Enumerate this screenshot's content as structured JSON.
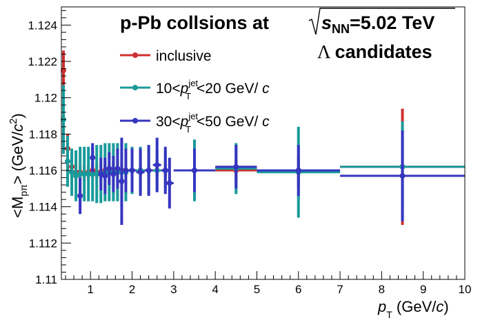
{
  "chart_data": {
    "type": "scatter",
    "title_line1": "p-Pb collsions at",
    "title_energy_sym": "s",
    "title_energy_sub": "NN",
    "title_energy_val": "=5.02 TeV",
    "subtitle_sym": "Λ",
    "subtitle": "candidates",
    "xlabel": {
      "main": "p",
      "sub": "T",
      "unit_open": " (GeV/",
      "unit_c": "c",
      "unit_close": ")"
    },
    "ylabel": {
      "pre": "<M",
      "sub": "pπ",
      "post": "> (GeV/",
      "c": "c",
      "sup": "2",
      "close": ")"
    },
    "xlim": [
      0.3,
      10
    ],
    "ylim": [
      1.11,
      1.125
    ],
    "x_ticks": [
      "1",
      "2",
      "3",
      "4",
      "5",
      "6",
      "7",
      "8",
      "9",
      "10"
    ],
    "y_ticks": [
      "1.11",
      "1.112",
      "1.114",
      "1.116",
      "1.118",
      "1.12",
      "1.122",
      "1.124"
    ],
    "legend_position": "top-left",
    "series": [
      {
        "name": "inclusive",
        "color": "#d03030",
        "points": [
          {
            "x": 0.35,
            "y": 1.1215,
            "xerr": 0.05,
            "yerr": 0.0011
          },
          {
            "x": 0.45,
            "y": 1.1172,
            "xerr": 0.05,
            "yerr": 0.0008
          },
          {
            "x": 0.55,
            "y": 1.1162,
            "xerr": 0.05,
            "yerr": 0.0006
          },
          {
            "x": 0.65,
            "y": 1.1159,
            "xerr": 0.05,
            "yerr": 0.0005
          },
          {
            "x": 0.75,
            "y": 1.1159,
            "xerr": 0.05,
            "yerr": 0.0004
          },
          {
            "x": 0.85,
            "y": 1.1158,
            "xerr": 0.05,
            "yerr": 0.0004
          },
          {
            "x": 0.95,
            "y": 1.1159,
            "xerr": 0.05,
            "yerr": 0.0004
          },
          {
            "x": 1.05,
            "y": 1.116,
            "xerr": 0.05,
            "yerr": 0.0004
          },
          {
            "x": 1.15,
            "y": 1.1159,
            "xerr": 0.05,
            "yerr": 0.0004
          },
          {
            "x": 1.25,
            "y": 1.1159,
            "xerr": 0.05,
            "yerr": 0.0004
          },
          {
            "x": 1.35,
            "y": 1.116,
            "xerr": 0.05,
            "yerr": 0.0004
          },
          {
            "x": 1.45,
            "y": 1.116,
            "xerr": 0.05,
            "yerr": 0.0004
          },
          {
            "x": 1.55,
            "y": 1.116,
            "xerr": 0.05,
            "yerr": 0.0004
          },
          {
            "x": 1.65,
            "y": 1.116,
            "xerr": 0.05,
            "yerr": 0.0004
          },
          {
            "x": 1.75,
            "y": 1.116,
            "xerr": 0.05,
            "yerr": 0.0004
          },
          {
            "x": 1.85,
            "y": 1.116,
            "xerr": 0.05,
            "yerr": 0.0004
          },
          {
            "x": 2.0,
            "y": 1.116,
            "xerr": 0.1,
            "yerr": 0.0004
          },
          {
            "x": 2.2,
            "y": 1.116,
            "xerr": 0.1,
            "yerr": 0.0004
          },
          {
            "x": 2.4,
            "y": 1.116,
            "xerr": 0.1,
            "yerr": 0.0004
          },
          {
            "x": 2.6,
            "y": 1.116,
            "xerr": 0.1,
            "yerr": 0.0004
          },
          {
            "x": 2.8,
            "y": 1.116,
            "xerr": 0.1,
            "yerr": 0.0004
          },
          {
            "x": 3.5,
            "y": 1.116,
            "xerr": 0.5,
            "yerr": 0.0004
          },
          {
            "x": 4.5,
            "y": 1.116,
            "xerr": 0.5,
            "yerr": 0.0006
          },
          {
            "x": 6.0,
            "y": 1.116,
            "xerr": 1.0,
            "yerr": 0.0009
          },
          {
            "x": 8.5,
            "y": 1.1162,
            "xerr": 1.5,
            "yerr": 0.0032
          }
        ]
      },
      {
        "name": "10<p_T^jet<20 GeV/c",
        "color": "#1a9a9a",
        "points": [
          {
            "x": 0.35,
            "y": 1.1188,
            "xerr": 0.05,
            "yerr": 0.0019
          },
          {
            "x": 0.45,
            "y": 1.1165,
            "xerr": 0.05,
            "yerr": 0.0014
          },
          {
            "x": 0.55,
            "y": 1.1159,
            "xerr": 0.05,
            "yerr": 0.0013
          },
          {
            "x": 0.65,
            "y": 1.1157,
            "xerr": 0.05,
            "yerr": 0.0014
          },
          {
            "x": 0.75,
            "y": 1.1158,
            "xerr": 0.05,
            "yerr": 0.0015
          },
          {
            "x": 0.85,
            "y": 1.1158,
            "xerr": 0.05,
            "yerr": 0.0015
          },
          {
            "x": 0.95,
            "y": 1.1158,
            "xerr": 0.05,
            "yerr": 0.0015
          },
          {
            "x": 1.05,
            "y": 1.1158,
            "xerr": 0.05,
            "yerr": 0.0015
          },
          {
            "x": 1.15,
            "y": 1.1158,
            "xerr": 0.05,
            "yerr": 0.0016
          },
          {
            "x": 1.25,
            "y": 1.1158,
            "xerr": 0.05,
            "yerr": 0.0016
          },
          {
            "x": 1.35,
            "y": 1.1159,
            "xerr": 0.05,
            "yerr": 0.0016
          },
          {
            "x": 1.45,
            "y": 1.1159,
            "xerr": 0.05,
            "yerr": 0.0016
          },
          {
            "x": 1.55,
            "y": 1.1159,
            "xerr": 0.05,
            "yerr": 0.0016
          },
          {
            "x": 1.65,
            "y": 1.1159,
            "xerr": 0.05,
            "yerr": 0.0016
          },
          {
            "x": 1.75,
            "y": 1.1159,
            "xerr": 0.05,
            "yerr": 0.0016
          },
          {
            "x": 1.85,
            "y": 1.1159,
            "xerr": 0.05,
            "yerr": 0.0016
          },
          {
            "x": 2.0,
            "y": 1.116,
            "xerr": 0.1,
            "yerr": 0.0013
          },
          {
            "x": 2.2,
            "y": 1.116,
            "xerr": 0.1,
            "yerr": 0.0013
          },
          {
            "x": 2.4,
            "y": 1.116,
            "xerr": 0.1,
            "yerr": 0.0013
          },
          {
            "x": 2.6,
            "y": 1.116,
            "xerr": 0.1,
            "yerr": 0.0011
          },
          {
            "x": 2.8,
            "y": 1.116,
            "xerr": 0.1,
            "yerr": 0.001
          },
          {
            "x": 3.5,
            "y": 1.116,
            "xerr": 0.5,
            "yerr": 0.0017
          },
          {
            "x": 4.5,
            "y": 1.1161,
            "xerr": 0.5,
            "yerr": 0.0014
          },
          {
            "x": 6.0,
            "y": 1.1159,
            "xerr": 1.0,
            "yerr": 0.0025
          },
          {
            "x": 8.5,
            "y": 1.1162,
            "xerr": 1.5,
            "yerr": 0.0025
          }
        ]
      },
      {
        "name": "30<p_T^jet<50 GeV/c",
        "color": "#3535c0",
        "points": [
          {
            "x": 0.75,
            "y": 1.1146,
            "xerr": 0.05,
            "yerr": 0.001
          },
          {
            "x": 1.05,
            "y": 1.1167,
            "xerr": 0.05,
            "yerr": 0.0008
          },
          {
            "x": 1.25,
            "y": 1.1158,
            "xerr": 0.05,
            "yerr": 0.0009
          },
          {
            "x": 1.35,
            "y": 1.1157,
            "xerr": 0.05,
            "yerr": 0.001
          },
          {
            "x": 1.45,
            "y": 1.1161,
            "xerr": 0.05,
            "yerr": 0.0009
          },
          {
            "x": 1.55,
            "y": 1.1158,
            "xerr": 0.05,
            "yerr": 0.001
          },
          {
            "x": 1.65,
            "y": 1.1161,
            "xerr": 0.05,
            "yerr": 0.0011
          },
          {
            "x": 1.75,
            "y": 1.1154,
            "xerr": 0.05,
            "yerr": 0.0024
          },
          {
            "x": 1.85,
            "y": 1.116,
            "xerr": 0.05,
            "yerr": 0.0012
          },
          {
            "x": 2.0,
            "y": 1.116,
            "xerr": 0.1,
            "yerr": 0.0012
          },
          {
            "x": 2.2,
            "y": 1.1159,
            "xerr": 0.1,
            "yerr": 0.0013
          },
          {
            "x": 2.4,
            "y": 1.116,
            "xerr": 0.1,
            "yerr": 0.0014
          },
          {
            "x": 2.6,
            "y": 1.1163,
            "xerr": 0.1,
            "yerr": 0.0015
          },
          {
            "x": 2.8,
            "y": 1.116,
            "xerr": 0.1,
            "yerr": 0.0013
          },
          {
            "x": 2.9,
            "y": 1.1153,
            "xerr": 0.1,
            "yerr": 0.0014
          },
          {
            "x": 3.5,
            "y": 1.116,
            "xerr": 0.5,
            "yerr": 0.0012
          },
          {
            "x": 4.5,
            "y": 1.1162,
            "xerr": 0.5,
            "yerr": 0.0012
          },
          {
            "x": 6.0,
            "y": 1.116,
            "xerr": 1.0,
            "yerr": 0.0014
          },
          {
            "x": 8.5,
            "y": 1.1157,
            "xerr": 1.5,
            "yerr": 0.0025
          }
        ]
      }
    ]
  }
}
